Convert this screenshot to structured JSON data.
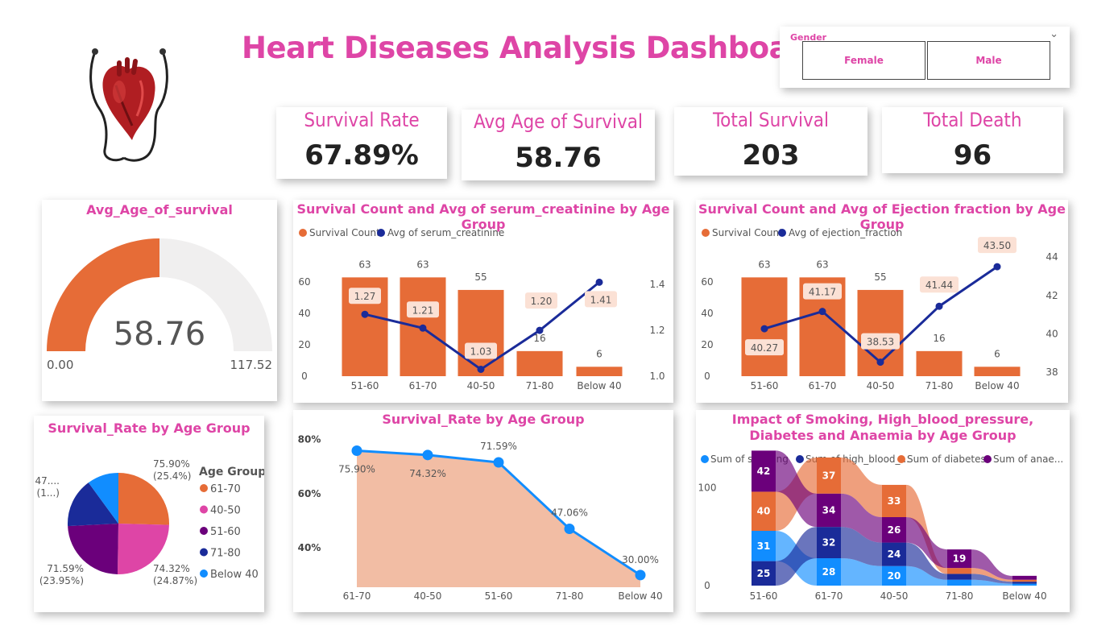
{
  "title": "Heart Diseases Analysis Dashboard",
  "slicer": {
    "label": "Gender",
    "options": [
      "Female",
      "Male"
    ]
  },
  "kpis": [
    {
      "label": "Survival Rate",
      "value": "67.89%"
    },
    {
      "label": "Avg Age of Survival",
      "value": "58.76"
    },
    {
      "label": "Total Survival",
      "value": "203"
    },
    {
      "label": "Total Death",
      "value": "96"
    }
  ],
  "colors": {
    "orange": "#e66c37",
    "navy": "#1a2b99",
    "pink": "#de45a6",
    "purple": "#6b007b",
    "blue": "#118dff",
    "grey": "#f0efef"
  },
  "chart_data": [
    {
      "type": "gauge",
      "title": "Avg_Age_of_survival",
      "value": 58.76,
      "min": 0,
      "max": 117.52,
      "value_label": "58.76",
      "min_label": "0.00",
      "max_label": "117.52"
    },
    {
      "type": "bar",
      "title": "Survival Count and Avg of serum_creatinine by Age Group",
      "legend": [
        "Survival Count",
        "Avg of serum_creatinine"
      ],
      "categories": [
        "51-60",
        "61-70",
        "40-50",
        "71-80",
        "Below 40"
      ],
      "series": [
        {
          "name": "Survival Count",
          "values": [
            63,
            63,
            55,
            16,
            6
          ]
        },
        {
          "name": "Avg of serum_creatinine",
          "values": [
            1.27,
            1.21,
            1.03,
            1.2,
            1.41
          ],
          "labels": [
            "1.27",
            "1.21",
            "1.03",
            "1.20",
            "1.41"
          ]
        }
      ],
      "y_ticks": [
        "0",
        "20",
        "40",
        "60"
      ],
      "ylim": [
        0,
        75
      ],
      "y2_ticks": [
        "1.0",
        "1.2",
        "1.4"
      ],
      "y2lim": [
        1.0,
        1.45
      ]
    },
    {
      "type": "bar",
      "title": "Survival Count and Avg of Ejection fraction by Age Group",
      "legend": [
        "Survival Count",
        "Avg of ejection_fraction"
      ],
      "categories": [
        "51-60",
        "61-70",
        "40-50",
        "71-80",
        "Below 40"
      ],
      "series": [
        {
          "name": "Survival Count",
          "values": [
            63,
            63,
            55,
            16,
            6
          ]
        },
        {
          "name": "Avg of ejection_fraction",
          "values": [
            40.27,
            41.17,
            38.53,
            41.44,
            43.5
          ],
          "labels": [
            "40.27",
            "41.17",
            "38.53",
            "41.44",
            "43.50"
          ]
        }
      ],
      "y_ticks": [
        "0",
        "20",
        "40",
        "60"
      ],
      "ylim": [
        0,
        75
      ],
      "y2_ticks": [
        "38",
        "40",
        "42",
        "44"
      ],
      "y2lim": [
        37.8,
        44.3
      ]
    },
    {
      "type": "pie",
      "title": "Survival_Rate by Age Group",
      "legend_title": "Age Group",
      "categories": [
        "61-70",
        "40-50",
        "51-60",
        "71-80",
        "Below 40"
      ],
      "values": [
        75.9,
        74.32,
        71.59,
        47.06,
        30.0
      ],
      "labels": [
        [
          "75.90%",
          "(25.4%)"
        ],
        [
          "74.32%",
          "(24.87%)"
        ],
        [
          "71.59%",
          "(23.95%)"
        ],
        [
          "47....",
          "(1...)"
        ]
      ]
    },
    {
      "type": "area",
      "title": "Survival_Rate by Age Group",
      "categories": [
        "61-70",
        "40-50",
        "51-60",
        "71-80",
        "Below 40"
      ],
      "values": [
        75.9,
        74.32,
        71.59,
        47.06,
        30.0
      ],
      "labels": [
        "75.90%",
        "74.32%",
        "71.59%",
        "47.06%",
        "30.00%"
      ],
      "y_ticks": [
        "40%",
        "60%",
        "80%"
      ],
      "ylim": [
        25.5,
        82
      ]
    },
    {
      "type": "ribbon",
      "title": "Impact of Smoking, High_blood_pressure, Diabetes and Anaemia by Age Group",
      "legend": [
        "Sum of smoking",
        "Sum of high_blood_...",
        "Sum of diabetes",
        "Sum of anae..."
      ],
      "categories": [
        "51-60",
        "61-70",
        "40-50",
        "71-80",
        "Below 40"
      ],
      "series": [
        {
          "name": "Sum of smoking",
          "values": [
            31,
            28,
            20,
            6,
            2
          ]
        },
        {
          "name": "Sum of high_blood_pressure",
          "values": [
            25,
            32,
            24,
            6,
            2
          ]
        },
        {
          "name": "Sum of diabetes",
          "values": [
            40,
            37,
            33,
            6,
            2
          ]
        },
        {
          "name": "Sum of anaemia",
          "values": [
            42,
            34,
            26,
            19,
            4
          ]
        }
      ],
      "y_ticks": [
        "0",
        "100"
      ],
      "ylim": [
        0,
        140
      ]
    }
  ]
}
